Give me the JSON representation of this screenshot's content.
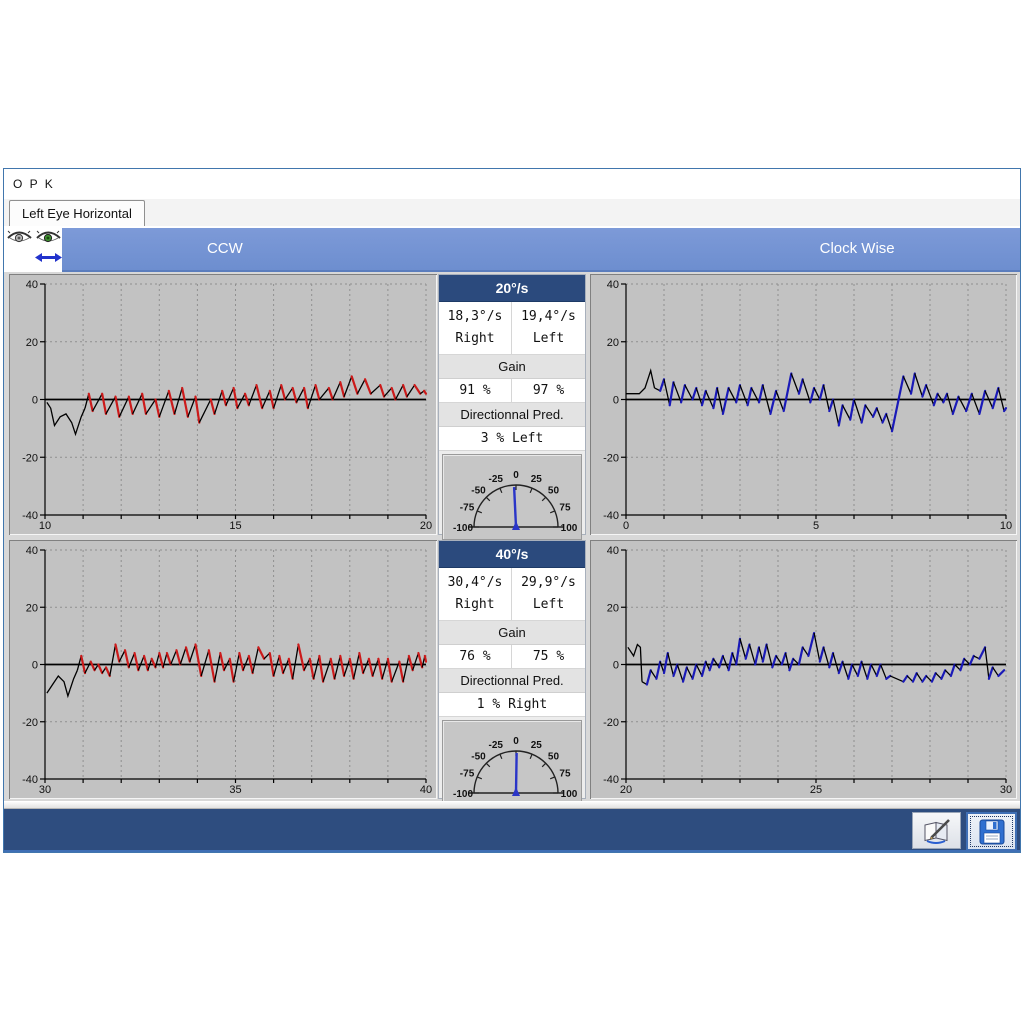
{
  "window": {
    "title": "O P K"
  },
  "tab": {
    "label": "Left Eye Horizontal"
  },
  "eye_selector": {
    "icons": [
      "right-eye-inactive",
      "left-eye-active-green",
      "horizontal-direction-arrow"
    ]
  },
  "header": {
    "left": "CCW",
    "right": "Clock Wise"
  },
  "panels": [
    {
      "speed_label": "20°/s",
      "right_value": "18,3°/s",
      "right_label": "Right",
      "left_value": "19,4°/s",
      "left_label": "Left",
      "gain_label": "Gain",
      "gain_right": "91 %",
      "gain_left": "97 %",
      "pred_label": "Directionnal Pred.",
      "pred_value": "3 % Left",
      "gauge": {
        "ticks": [
          -100,
          -75,
          -50,
          -25,
          0,
          25,
          50,
          75,
          100
        ],
        "needle": -3,
        "needle_color": "#2a35c8"
      }
    },
    {
      "speed_label": "40°/s",
      "right_value": "30,4°/s",
      "right_label": "Right",
      "left_value": "29,9°/s",
      "left_label": "Left",
      "gain_label": "Gain",
      "gain_right": "76 %",
      "gain_left": "75 %",
      "pred_label": "Directionnal Pred.",
      "pred_value": "1 % Right",
      "gauge": {
        "ticks": [
          -100,
          -75,
          -50,
          -25,
          0,
          25,
          50,
          75,
          100
        ],
        "needle": 1,
        "needle_color": "#2a35c8"
      }
    }
  ],
  "toolbar": {
    "buttons": [
      {
        "icon": "report-pencil"
      },
      {
        "icon": "save-floppy",
        "focused": true
      }
    ]
  },
  "colors": {
    "header_blue": "#7491d2",
    "navy_bar": "#2e4d7f",
    "chart_bg": "#c2c2c2",
    "grid": "#8f8f8f",
    "axis": "#000000",
    "fast_red": "#cc1a1a",
    "fast_blue": "#1a1ab8"
  },
  "chart_data": [
    {
      "type": "line",
      "title": "CCW 20°/s",
      "x_range": [
        10,
        20
      ],
      "x_ticks": [
        10,
        15,
        20
      ],
      "y_range": [
        -40,
        40
      ],
      "y_ticks": [
        -40,
        -20,
        0,
        20,
        40
      ],
      "slow_color": "#000000",
      "fast_color": "#cc1a1a",
      "intro": [
        [
          10.05,
          -1
        ],
        [
          10.15,
          -3
        ],
        [
          10.25,
          -9
        ],
        [
          10.4,
          -6
        ],
        [
          10.55,
          -5
        ],
        [
          10.7,
          -8
        ],
        [
          10.8,
          -12
        ],
        [
          10.95,
          -6
        ],
        [
          11.05,
          -3
        ]
      ],
      "cycles": [
        [
          11.15,
          2,
          11.25,
          -4
        ],
        [
          11.5,
          2,
          11.6,
          -5
        ],
        [
          11.85,
          1,
          11.95,
          -6
        ],
        [
          12.2,
          1,
          12.3,
          -5
        ],
        [
          12.55,
          2,
          12.65,
          -5
        ],
        [
          12.9,
          0,
          13.0,
          -6
        ],
        [
          13.25,
          3,
          13.4,
          -5
        ],
        [
          13.6,
          4,
          13.75,
          -6
        ],
        [
          13.95,
          1,
          14.05,
          -8
        ],
        [
          14.35,
          0,
          14.45,
          -5
        ],
        [
          14.65,
          3,
          14.75,
          -2
        ],
        [
          14.95,
          4,
          15.05,
          -3
        ],
        [
          15.25,
          2,
          15.35,
          -2
        ],
        [
          15.55,
          5,
          15.7,
          -3
        ],
        [
          15.9,
          3,
          16.0,
          -3
        ],
        [
          16.2,
          5,
          16.3,
          0
        ],
        [
          16.5,
          4,
          16.6,
          -1
        ],
        [
          16.8,
          4,
          16.9,
          -3
        ],
        [
          17.1,
          5,
          17.2,
          0
        ],
        [
          17.45,
          4,
          17.55,
          0
        ],
        [
          17.75,
          6,
          17.85,
          1
        ],
        [
          18.05,
          8,
          18.2,
          2
        ],
        [
          18.4,
          7,
          18.55,
          2
        ],
        [
          18.8,
          5,
          18.9,
          1
        ],
        [
          19.1,
          4,
          19.2,
          0
        ],
        [
          19.4,
          5,
          19.5,
          1
        ],
        [
          19.7,
          5,
          19.85,
          2
        ],
        [
          19.95,
          3,
          20.0,
          2
        ]
      ]
    },
    {
      "type": "line",
      "title": "Clock Wise 20°/s",
      "x_range": [
        0,
        10
      ],
      "x_ticks": [
        0,
        5,
        10
      ],
      "y_range": [
        -40,
        40
      ],
      "y_ticks": [
        -40,
        -20,
        0,
        20,
        40
      ],
      "slow_color": "#000000",
      "fast_color": "#1a1ab8",
      "intro": [
        [
          0.0,
          2
        ],
        [
          0.35,
          2
        ],
        [
          0.5,
          4
        ],
        [
          0.65,
          10
        ],
        [
          0.75,
          4
        ]
      ],
      "cycles": [
        [
          0.9,
          3,
          1.0,
          7
        ],
        [
          1.15,
          -2,
          1.25,
          6
        ],
        [
          1.45,
          -1,
          1.55,
          5
        ],
        [
          1.75,
          0,
          1.85,
          4
        ],
        [
          2.0,
          -2,
          2.1,
          3
        ],
        [
          2.3,
          -3,
          2.4,
          4
        ],
        [
          2.55,
          -5,
          2.7,
          4
        ],
        [
          2.9,
          -1,
          3.0,
          5
        ],
        [
          3.2,
          -2,
          3.3,
          4
        ],
        [
          3.5,
          -1,
          3.6,
          5
        ],
        [
          3.8,
          -5,
          3.95,
          3
        ],
        [
          4.15,
          -4,
          4.35,
          9
        ],
        [
          4.55,
          2,
          4.65,
          7
        ],
        [
          4.85,
          -1,
          4.95,
          4
        ],
        [
          5.1,
          0,
          5.2,
          5
        ],
        [
          5.35,
          -4,
          5.45,
          0
        ],
        [
          5.6,
          -9,
          5.7,
          -2
        ],
        [
          5.9,
          -7,
          6.0,
          0
        ],
        [
          6.2,
          -8,
          6.3,
          -2
        ],
        [
          6.5,
          -6,
          6.6,
          -3
        ],
        [
          6.75,
          -8,
          6.85,
          -5
        ],
        [
          7.0,
          -11,
          7.3,
          8
        ],
        [
          7.5,
          2,
          7.6,
          9
        ],
        [
          7.8,
          1,
          7.9,
          5
        ],
        [
          8.1,
          -2,
          8.2,
          2
        ],
        [
          8.35,
          -1,
          8.45,
          2
        ],
        [
          8.6,
          -5,
          8.75,
          1
        ],
        [
          8.95,
          -4,
          9.1,
          2
        ],
        [
          9.3,
          -5,
          9.45,
          3
        ],
        [
          9.65,
          -3,
          9.8,
          4
        ],
        [
          9.95,
          -4,
          10.0,
          -3
        ]
      ]
    },
    {
      "type": "line",
      "title": "CCW 40°/s",
      "x_range": [
        30,
        40
      ],
      "x_ticks": [
        30,
        35,
        40
      ],
      "y_range": [
        -40,
        40
      ],
      "y_ticks": [
        -40,
        -20,
        0,
        20,
        40
      ],
      "slow_color": "#000000",
      "fast_color": "#cc1a1a",
      "intro": [
        [
          30.05,
          -10
        ],
        [
          30.2,
          -7
        ],
        [
          30.35,
          -4
        ],
        [
          30.5,
          -6
        ],
        [
          30.6,
          -11
        ],
        [
          30.75,
          -5
        ],
        [
          30.85,
          -2
        ]
      ],
      "cycles": [
        [
          30.95,
          3,
          31.05,
          -3
        ],
        [
          31.2,
          1,
          31.3,
          -2
        ],
        [
          31.4,
          0,
          31.5,
          -3
        ],
        [
          31.6,
          -1,
          31.7,
          -4
        ],
        [
          31.85,
          7,
          31.95,
          1
        ],
        [
          32.1,
          5,
          32.2,
          -1
        ],
        [
          32.35,
          4,
          32.45,
          -2
        ],
        [
          32.6,
          3,
          32.7,
          -2
        ],
        [
          32.8,
          2,
          32.9,
          -1
        ],
        [
          33.0,
          4,
          33.1,
          -1
        ],
        [
          33.2,
          4,
          33.3,
          0
        ],
        [
          33.45,
          5,
          33.55,
          0
        ],
        [
          33.7,
          6,
          33.8,
          1
        ],
        [
          33.95,
          7,
          34.1,
          -4
        ],
        [
          34.3,
          5,
          34.45,
          -6
        ],
        [
          34.6,
          4,
          34.7,
          -2
        ],
        [
          34.85,
          2,
          34.95,
          -6
        ],
        [
          35.1,
          4,
          35.2,
          -2
        ],
        [
          35.35,
          3,
          35.45,
          -3
        ],
        [
          35.6,
          6,
          35.75,
          2
        ],
        [
          35.9,
          4,
          36.0,
          -4
        ],
        [
          36.15,
          3,
          36.25,
          -3
        ],
        [
          36.4,
          2,
          36.5,
          -5
        ],
        [
          36.65,
          7,
          36.8,
          -2
        ],
        [
          36.95,
          2,
          37.05,
          -5
        ],
        [
          37.2,
          3,
          37.3,
          -6
        ],
        [
          37.5,
          2,
          37.6,
          -5
        ],
        [
          37.75,
          3,
          37.85,
          -4
        ],
        [
          38.0,
          2,
          38.1,
          -5
        ],
        [
          38.25,
          4,
          38.35,
          -3
        ],
        [
          38.5,
          2,
          38.6,
          -4
        ],
        [
          38.75,
          2,
          38.85,
          -5
        ],
        [
          39.0,
          2,
          39.1,
          -6
        ],
        [
          39.3,
          1,
          39.4,
          -6
        ],
        [
          39.55,
          3,
          39.65,
          -2
        ],
        [
          39.8,
          4,
          39.9,
          -1
        ],
        [
          39.97,
          3,
          40.0,
          1
        ]
      ]
    },
    {
      "type": "line",
      "title": "Clock Wise 40°/s",
      "x_range": [
        20,
        30
      ],
      "x_ticks": [
        20,
        25,
        30
      ],
      "y_range": [
        -40,
        40
      ],
      "y_ticks": [
        -40,
        -20,
        0,
        20,
        40
      ],
      "slow_color": "#000000",
      "fast_color": "#1a1ab8",
      "intro": [
        [
          20.05,
          6
        ],
        [
          20.2,
          3
        ],
        [
          20.3,
          7
        ],
        [
          20.38,
          6
        ],
        [
          20.42,
          -6
        ]
      ],
      "cycles": [
        [
          20.55,
          -7,
          20.65,
          -2
        ],
        [
          20.8,
          -5,
          20.9,
          1
        ],
        [
          21.0,
          -3,
          21.1,
          4
        ],
        [
          21.25,
          -4,
          21.35,
          0
        ],
        [
          21.5,
          -6,
          21.6,
          -1
        ],
        [
          21.75,
          -5,
          21.85,
          0
        ],
        [
          22.0,
          -4,
          22.1,
          1
        ],
        [
          22.2,
          -2,
          22.3,
          2
        ],
        [
          22.45,
          -1,
          22.55,
          3
        ],
        [
          22.7,
          -2,
          22.8,
          4
        ],
        [
          22.9,
          0,
          23.0,
          9
        ],
        [
          23.15,
          2,
          23.25,
          7
        ],
        [
          23.4,
          0,
          23.5,
          6
        ],
        [
          23.6,
          1,
          23.7,
          7
        ],
        [
          23.85,
          -1,
          23.95,
          3
        ],
        [
          24.1,
          0,
          24.2,
          4
        ],
        [
          24.3,
          -2,
          24.4,
          2
        ],
        [
          24.55,
          0,
          24.65,
          6
        ],
        [
          24.8,
          3,
          24.95,
          11
        ],
        [
          25.1,
          1,
          25.2,
          6
        ],
        [
          25.35,
          -1,
          25.45,
          4
        ],
        [
          25.6,
          -3,
          25.7,
          1
        ],
        [
          25.85,
          -5,
          25.95,
          0
        ],
        [
          26.1,
          -4,
          26.2,
          1
        ],
        [
          26.35,
          -5,
          26.45,
          0
        ],
        [
          26.6,
          -4,
          26.7,
          0
        ],
        [
          26.85,
          -5,
          26.95,
          -4
        ],
        [
          27.3,
          -6,
          27.4,
          -4
        ],
        [
          27.55,
          -6,
          27.65,
          -3
        ],
        [
          27.8,
          -6,
          27.9,
          -4
        ],
        [
          28.05,
          -6,
          28.15,
          -3
        ],
        [
          28.3,
          -5,
          28.4,
          -2
        ],
        [
          28.55,
          -4,
          28.65,
          0
        ],
        [
          28.8,
          -2,
          28.9,
          2
        ],
        [
          29.05,
          0,
          29.15,
          3
        ],
        [
          29.3,
          2,
          29.45,
          6
        ],
        [
          29.55,
          -5,
          29.65,
          -1
        ],
        [
          29.8,
          -4,
          29.95,
          -2
        ]
      ]
    }
  ]
}
